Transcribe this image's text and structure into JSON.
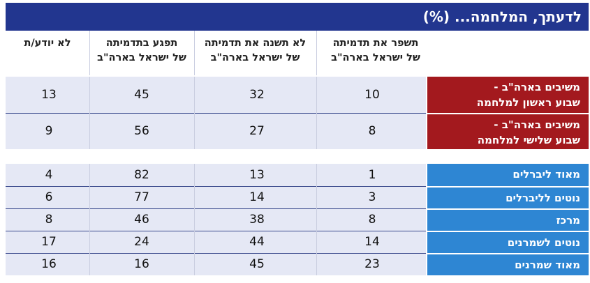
{
  "title": "לדעתך, המלחמה... (%)",
  "columns": [
    {
      "line1": "תשפר את תדמיתה",
      "line2": "של ישראל בארה\"ב"
    },
    {
      "line1": "לא תשנה את תדמיתה",
      "line2": "של ישראל בארה\"ב"
    },
    {
      "line1": "תפגע בתדמיתה",
      "line2": "של ישראל בארה\"ב"
    },
    {
      "line1": "לא יודע/ת",
      "line2": ""
    }
  ],
  "colors": {
    "title_bg": "#22368f",
    "red": "#a3191e",
    "blue": "#2e86d3",
    "band": "#e5e8f5"
  },
  "chart_data": {
    "type": "table",
    "groups": [
      {
        "rows": [
          {
            "label1": "משיבים בארה\"ב -",
            "label2": "שבוע ראשון למלחמה",
            "values": [
              "10",
              "32",
              "45",
              "13"
            ]
          },
          {
            "label1": "משיבים בארה\"ב -",
            "label2": "שבוע שלישי למלחמה",
            "values": [
              "8",
              "27",
              "56",
              "9"
            ]
          }
        ]
      },
      {
        "rows": [
          {
            "label1": "מאוד ליברלים",
            "label2": "",
            "values": [
              "1",
              "13",
              "82",
              "4"
            ]
          },
          {
            "label1": "נוטים לליברלים",
            "label2": "",
            "values": [
              "3",
              "14",
              "77",
              "6"
            ]
          },
          {
            "label1": "מרכז",
            "label2": "",
            "values": [
              "8",
              "38",
              "46",
              "8"
            ]
          },
          {
            "label1": "נוטים לשמרנים",
            "label2": "",
            "values": [
              "14",
              "44",
              "24",
              "17"
            ]
          },
          {
            "label1": "מאוד שמרנים",
            "label2": "",
            "values": [
              "23",
              "45",
              "16",
              "16"
            ]
          }
        ]
      }
    ]
  }
}
